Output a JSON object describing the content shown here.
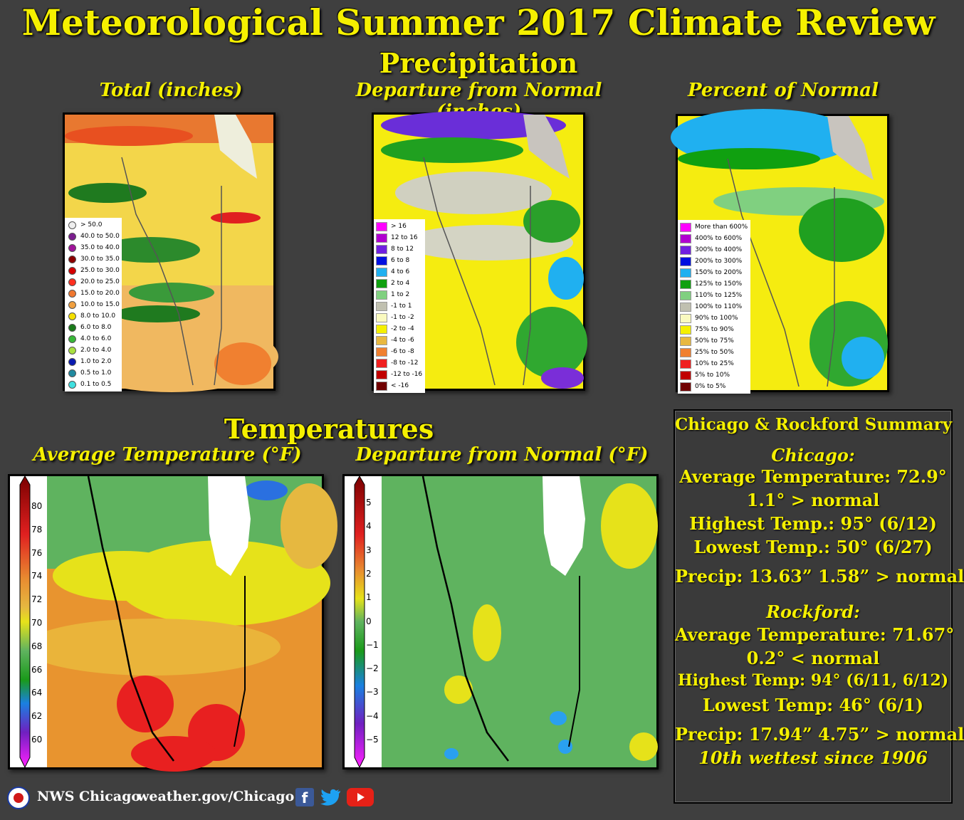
{
  "title": "Meteorological Summer 2017 Climate Review",
  "precip": {
    "heading": "Precipitation",
    "maps": [
      {
        "title": "Total (inches)",
        "legend": [
          {
            "label": "> 50.0",
            "color": "#eeeeee"
          },
          {
            "label": "40.0 to 50.0",
            "color": "#7b1e8f"
          },
          {
            "label": "35.0 to 40.0",
            "color": "#a0149a"
          },
          {
            "label": "30.0 to 35.0",
            "color": "#8b0000"
          },
          {
            "label": "25.0 to 30.0",
            "color": "#d40000"
          },
          {
            "label": "20.0 to 25.0",
            "color": "#ff3020"
          },
          {
            "label": "15.0 to 20.0",
            "color": "#f07830"
          },
          {
            "label": "10.0 to 15.0",
            "color": "#f0a040"
          },
          {
            "label": "8.0 to 10.0",
            "color": "#f5e000"
          },
          {
            "label": "6.0 to 8.0",
            "color": "#1a7a1a"
          },
          {
            "label": "4.0 to 6.0",
            "color": "#38b838"
          },
          {
            "label": "2.0 to 4.0",
            "color": "#a8e040"
          },
          {
            "label": "1.0 to 2.0",
            "color": "#0a1ab0"
          },
          {
            "label": "0.5 to 1.0",
            "color": "#208aa0"
          },
          {
            "label": "0.1 to 0.5",
            "color": "#40e0e0"
          }
        ]
      },
      {
        "title": "Departure from Normal (inches)",
        "legend": [
          {
            "label": "> 16",
            "color": "#ff00ff"
          },
          {
            "label": "12 to 16",
            "color": "#b000d0"
          },
          {
            "label": "8 to 12",
            "color": "#7020e0"
          },
          {
            "label": "6 to 8",
            "color": "#0010e0"
          },
          {
            "label": "4 to 6",
            "color": "#20b0f0"
          },
          {
            "label": "2 to 4",
            "color": "#10a010"
          },
          {
            "label": "1 to 2",
            "color": "#80d080"
          },
          {
            "label": "-1 to 1",
            "color": "#c0c0b0"
          },
          {
            "label": "-1 to -2",
            "color": "#fafac0"
          },
          {
            "label": "-2 to -4",
            "color": "#f5f000"
          },
          {
            "label": "-4 to -6",
            "color": "#e8b840"
          },
          {
            "label": "-6 to -8",
            "color": "#f08030"
          },
          {
            "label": "-8 to -12",
            "color": "#f02020"
          },
          {
            "label": "-12 to -16",
            "color": "#c00000"
          },
          {
            "label": "< -16",
            "color": "#700000"
          }
        ]
      },
      {
        "title": "Percent of Normal",
        "legend": [
          {
            "label": "More than 600%",
            "color": "#ff00ff"
          },
          {
            "label": "400% to 600%",
            "color": "#b000d0"
          },
          {
            "label": "300% to 400%",
            "color": "#7020e0"
          },
          {
            "label": "200% to 300%",
            "color": "#0010e0"
          },
          {
            "label": "150% to 200%",
            "color": "#20b0f0"
          },
          {
            "label": "125% to 150%",
            "color": "#10a010"
          },
          {
            "label": "110% to 125%",
            "color": "#80d080"
          },
          {
            "label": "100% to 110%",
            "color": "#c0c0b0"
          },
          {
            "label": "90% to 100%",
            "color": "#fafac0"
          },
          {
            "label": "75% to 90%",
            "color": "#f5f000"
          },
          {
            "label": "50% to 75%",
            "color": "#e8b840"
          },
          {
            "label": "25% to 50%",
            "color": "#f08030"
          },
          {
            "label": "10% to 25%",
            "color": "#f02020"
          },
          {
            "label": "5% to 10%",
            "color": "#c00000"
          },
          {
            "label": "0% to 5%",
            "color": "#700000"
          }
        ]
      }
    ]
  },
  "temps": {
    "heading": "Temperatures",
    "avg": {
      "title": "Average Temperature (°F)",
      "ticks": [
        "80",
        "78",
        "76",
        "74",
        "72",
        "70",
        "68",
        "66",
        "64",
        "62",
        "60"
      ]
    },
    "dep": {
      "title": "Departure from Normal (°F)",
      "ticks": [
        "5",
        "4",
        "3",
        "2",
        "1",
        "0",
        "−1",
        "−2",
        "−3",
        "−4",
        "−5"
      ]
    }
  },
  "summary": {
    "heading": "Chicago & Rockford Summary",
    "chicago": {
      "name": "Chicago:",
      "avg": "Average Temperature: 72.9°",
      "dep": "1.1° > normal",
      "high": "Highest Temp.: 95° (6/12)",
      "low": "Lowest Temp.: 50° (6/27)",
      "precip": "Precip: 13.63”   1.58” > normal"
    },
    "rockford": {
      "name": "Rockford:",
      "avg": "Average Temperature: 71.67°",
      "dep": "0.2° < normal",
      "high": "Highest Temp: 94° (6/11, 6/12)",
      "low": "Lowest Temp: 46° (6/1)",
      "precip": "Precip: 17.94”   4.75” > normal",
      "note": "10th wettest since 1906"
    }
  },
  "footer": {
    "office": "NWS Chicago",
    "url": "weather.gov/Chicago"
  }
}
